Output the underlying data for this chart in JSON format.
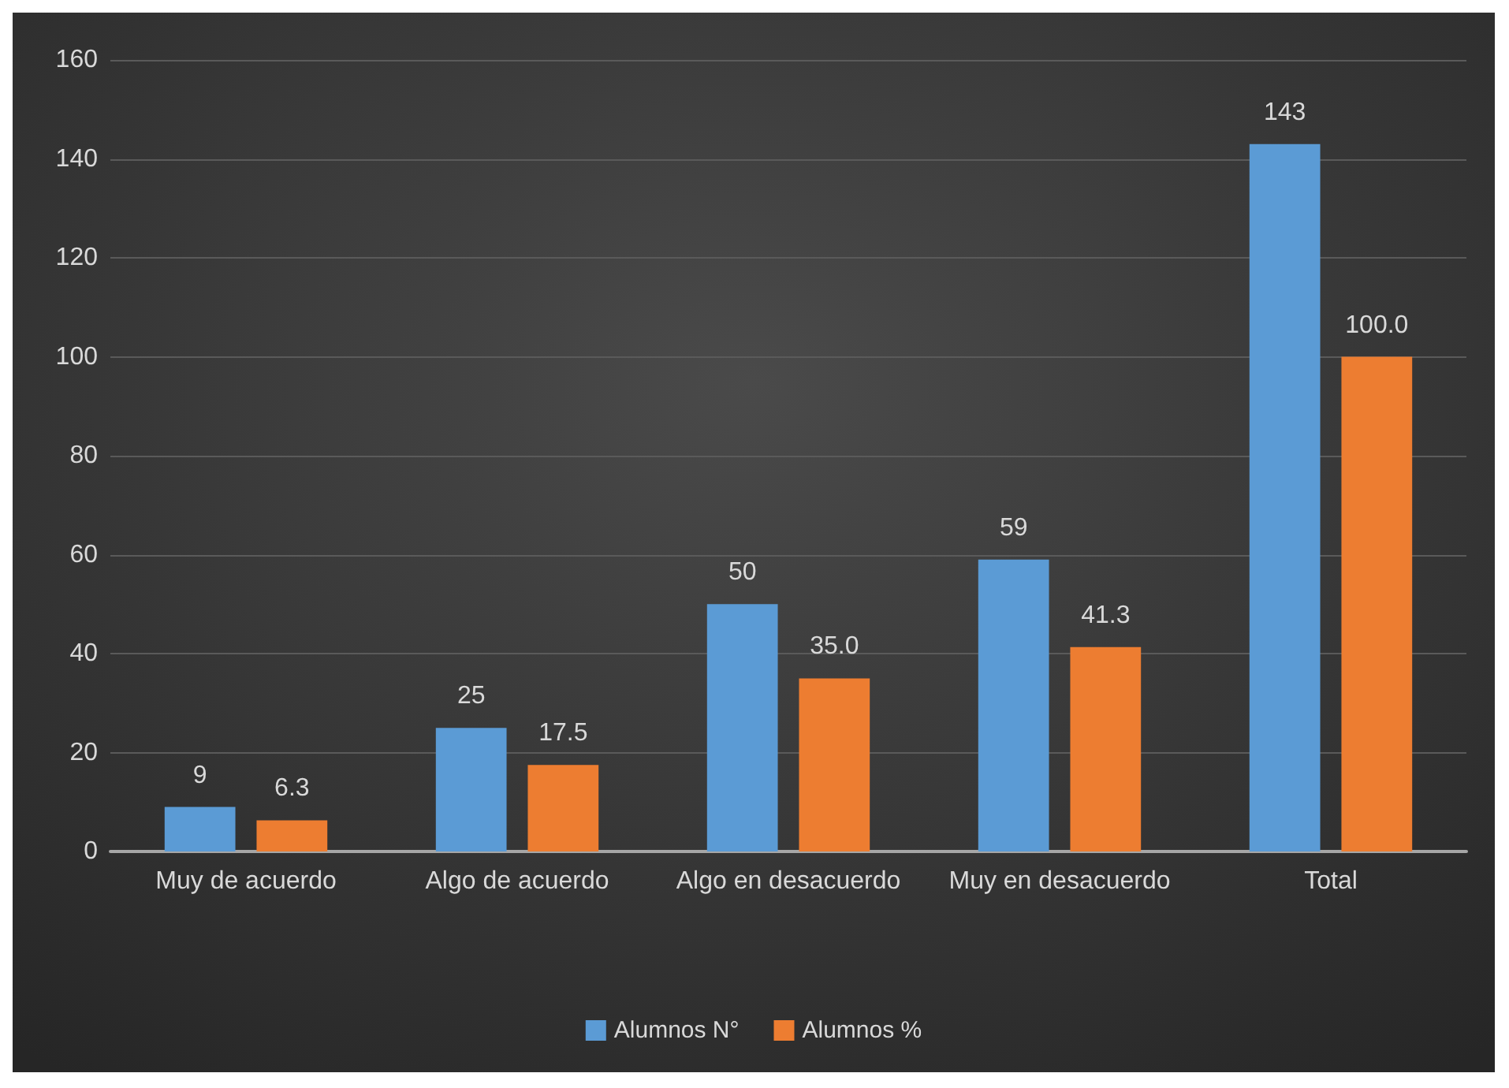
{
  "chart_data": {
    "type": "bar",
    "categories": [
      "Muy de acuerdo",
      "Algo de acuerdo",
      "Algo en desacuerdo",
      "Muy en desacuerdo",
      "Total"
    ],
    "series": [
      {
        "name": "Alumnos N°",
        "color": "#5b9bd5",
        "values": [
          9,
          25,
          50,
          59,
          143
        ],
        "value_labels": [
          "9",
          "25",
          "50",
          "59",
          "143"
        ]
      },
      {
        "name": "Alumnos %",
        "color": "#ed7d31",
        "values": [
          6.3,
          17.5,
          35.0,
          41.3,
          100.0
        ],
        "value_labels": [
          "6.3",
          "17.5",
          "35.0",
          "41.3",
          "100.0"
        ]
      }
    ],
    "ylim": [
      0,
      160
    ],
    "yticks": [
      0,
      20,
      40,
      60,
      80,
      100,
      120,
      140,
      160
    ],
    "grid": "y",
    "legend": "bottom"
  }
}
